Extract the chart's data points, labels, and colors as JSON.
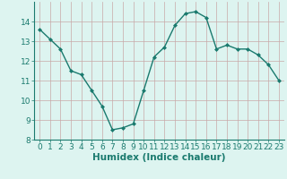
{
  "x": [
    0,
    1,
    2,
    3,
    4,
    5,
    6,
    7,
    8,
    9,
    10,
    11,
    12,
    13,
    14,
    15,
    16,
    17,
    18,
    19,
    20,
    21,
    22,
    23
  ],
  "y": [
    13.6,
    13.1,
    12.6,
    11.5,
    11.3,
    10.5,
    9.7,
    8.5,
    8.6,
    8.8,
    10.5,
    12.2,
    12.7,
    13.8,
    14.4,
    14.5,
    14.2,
    12.6,
    12.8,
    12.6,
    12.6,
    12.3,
    11.8,
    11.0
  ],
  "xlim": [
    -0.5,
    23.5
  ],
  "ylim": [
    8,
    15
  ],
  "yticks": [
    8,
    9,
    10,
    11,
    12,
    13,
    14
  ],
  "xticks": [
    0,
    1,
    2,
    3,
    4,
    5,
    6,
    7,
    8,
    9,
    10,
    11,
    12,
    13,
    14,
    15,
    16,
    17,
    18,
    19,
    20,
    21,
    22,
    23
  ],
  "xlabel": "Humidex (Indice chaleur)",
  "line_color": "#1a7a6e",
  "marker": "D",
  "marker_size": 2.0,
  "bg_color": "#ddf4f0",
  "grid_color_major": "#c8a8a8",
  "grid_color_minor": "#dfc8c8",
  "tick_label_fontsize": 6.5,
  "xlabel_fontsize": 7.5
}
